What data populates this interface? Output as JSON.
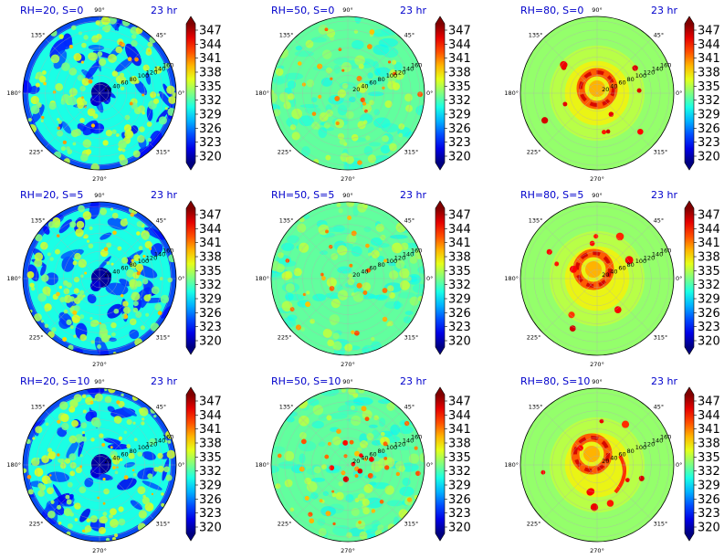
{
  "figure": {
    "colormap": "jet",
    "colorbar_ticks": [
      "347",
      "344",
      "341",
      "338",
      "335",
      "332",
      "329",
      "326",
      "323",
      "320"
    ],
    "angle_labels": [
      "90°",
      "45°",
      "0°",
      "315°",
      "270°",
      "225°",
      "180°",
      "135°"
    ],
    "radial_labels": [
      "20",
      "40",
      "60",
      "80",
      "100",
      "120",
      "140",
      "160"
    ],
    "time_label": "23 hr"
  },
  "chart_data": [
    {
      "type": "heatmap",
      "title": "RH=20, S=0",
      "rh": 20,
      "s": 0,
      "annotation": "23 hr",
      "projection": "polar",
      "colorbar": {
        "min": 320,
        "max": 347,
        "ticks": [
          320,
          323,
          326,
          329,
          332,
          335,
          338,
          341,
          344,
          347
        ]
      },
      "radial_ticks": [
        20,
        40,
        60,
        80,
        100,
        120,
        140,
        160
      ],
      "angle_ticks_deg": [
        0,
        45,
        90,
        135,
        180,
        225,
        270,
        315
      ]
    },
    {
      "type": "heatmap",
      "title": "RH=50, S=0",
      "rh": 50,
      "s": 0,
      "annotation": "23 hr",
      "projection": "polar",
      "colorbar": {
        "min": 320,
        "max": 347,
        "ticks": [
          320,
          323,
          326,
          329,
          332,
          335,
          338,
          341,
          344,
          347
        ]
      },
      "radial_ticks": [
        20,
        40,
        60,
        80,
        100,
        120,
        140,
        160
      ],
      "angle_ticks_deg": [
        0,
        45,
        90,
        135,
        180,
        225,
        270,
        315
      ]
    },
    {
      "type": "heatmap",
      "title": "RH=80, S=0",
      "rh": 80,
      "s": 0,
      "annotation": "23 hr",
      "projection": "polar",
      "colorbar": {
        "min": 320,
        "max": 347,
        "ticks": [
          320,
          323,
          326,
          329,
          332,
          335,
          338,
          341,
          344,
          347
        ]
      },
      "radial_ticks": [
        20,
        40,
        60,
        80,
        100,
        120,
        140,
        160
      ],
      "angle_ticks_deg": [
        0,
        45,
        90,
        135,
        180,
        225,
        270,
        315
      ]
    },
    {
      "type": "heatmap",
      "title": "RH=20, S=5",
      "rh": 20,
      "s": 5,
      "annotation": "23 hr",
      "projection": "polar",
      "colorbar": {
        "min": 320,
        "max": 347,
        "ticks": [
          320,
          323,
          326,
          329,
          332,
          335,
          338,
          341,
          344,
          347
        ]
      },
      "radial_ticks": [
        20,
        40,
        60,
        80,
        100,
        120,
        140,
        160
      ],
      "angle_ticks_deg": [
        0,
        45,
        90,
        135,
        180,
        225,
        270,
        315
      ]
    },
    {
      "type": "heatmap",
      "title": "RH=50, S=5",
      "rh": 50,
      "s": 5,
      "annotation": "23 hr",
      "projection": "polar",
      "colorbar": {
        "min": 320,
        "max": 347,
        "ticks": [
          320,
          323,
          326,
          329,
          332,
          335,
          338,
          341,
          344,
          347
        ]
      },
      "radial_ticks": [
        20,
        40,
        60,
        80,
        100,
        120,
        140,
        160
      ],
      "angle_ticks_deg": [
        0,
        45,
        90,
        135,
        180,
        225,
        270,
        315
      ]
    },
    {
      "type": "heatmap",
      "title": "RH=80, S=5",
      "rh": 80,
      "s": 5,
      "annotation": "23 hr",
      "projection": "polar",
      "colorbar": {
        "min": 320,
        "max": 347,
        "ticks": [
          320,
          323,
          326,
          329,
          332,
          335,
          338,
          341,
          344,
          347
        ]
      },
      "radial_ticks": [
        20,
        40,
        60,
        80,
        100,
        120,
        140,
        160
      ],
      "angle_ticks_deg": [
        0,
        45,
        90,
        135,
        180,
        225,
        270,
        315
      ]
    },
    {
      "type": "heatmap",
      "title": "RH=20, S=10",
      "rh": 20,
      "s": 10,
      "annotation": "23 hr",
      "projection": "polar",
      "colorbar": {
        "min": 320,
        "max": 347,
        "ticks": [
          320,
          323,
          326,
          329,
          332,
          335,
          338,
          341,
          344,
          347
        ]
      },
      "radial_ticks": [
        20,
        40,
        60,
        80,
        100,
        120,
        140,
        160
      ],
      "angle_ticks_deg": [
        0,
        45,
        90,
        135,
        180,
        225,
        270,
        315
      ]
    },
    {
      "type": "heatmap",
      "title": "RH=50, S=10",
      "rh": 50,
      "s": 10,
      "annotation": "23 hr",
      "projection": "polar",
      "colorbar": {
        "min": 320,
        "max": 347,
        "ticks": [
          320,
          323,
          326,
          329,
          332,
          335,
          338,
          341,
          344,
          347
        ]
      },
      "radial_ticks": [
        20,
        40,
        60,
        80,
        100,
        120,
        140,
        160
      ],
      "angle_ticks_deg": [
        0,
        45,
        90,
        135,
        180,
        225,
        270,
        315
      ]
    },
    {
      "type": "heatmap",
      "title": "RH=80, S=10",
      "rh": 80,
      "s": 10,
      "annotation": "23 hr",
      "projection": "polar",
      "colorbar": {
        "min": 320,
        "max": 347,
        "ticks": [
          320,
          323,
          326,
          329,
          332,
          335,
          338,
          341,
          344,
          347
        ]
      },
      "radial_ticks": [
        20,
        40,
        60,
        80,
        100,
        120,
        140,
        160
      ],
      "angle_ticks_deg": [
        0,
        45,
        90,
        135,
        180,
        225,
        270,
        315
      ]
    }
  ]
}
